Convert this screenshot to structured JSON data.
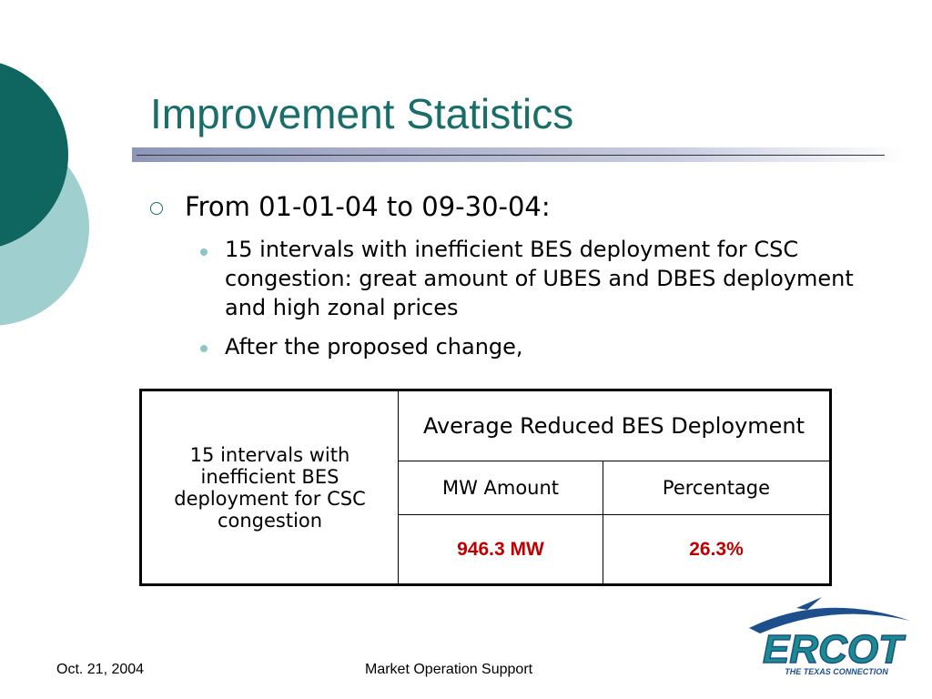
{
  "title": "Improvement Statistics",
  "bullets": [
    {
      "text": "From 01-01-04 to 09-30-04:",
      "sub": [
        "15 intervals with inefficient BES deployment for CSC congestion: great amount of UBES and DBES deployment and high zonal prices",
        "After the proposed change,"
      ]
    }
  ],
  "table": {
    "row_header": "15 intervals with inefficient BES deployment for CSC congestion",
    "group_header": "Average Reduced BES Deployment",
    "columns": [
      "MW Amount",
      "Percentage"
    ],
    "values": [
      "946.3 MW",
      "26.3%"
    ]
  },
  "logo": {
    "name": "ERCOT",
    "tagline": "THE TEXAS CONNECTION"
  },
  "footer": {
    "date": "Oct. 21, 2004",
    "center": "Market Operation Support"
  }
}
